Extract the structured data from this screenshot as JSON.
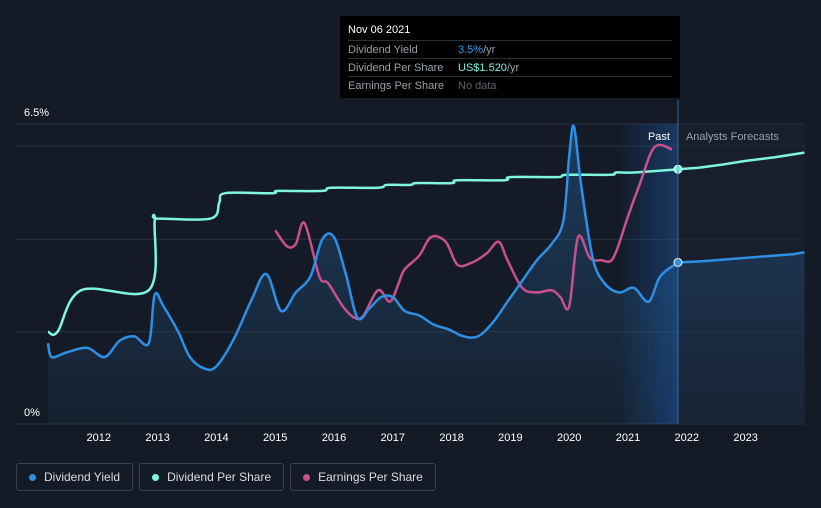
{
  "tooltip": {
    "date": "Nov 06 2021",
    "rows": [
      {
        "label": "Dividend Yield",
        "value": "3.5%",
        "suffix": " /yr"
      },
      {
        "label": "Dividend Per Share",
        "value": "US$1.520",
        "suffix": " /yr"
      },
      {
        "label": "Earnings Per Share",
        "value": "No data",
        "suffix": ""
      }
    ]
  },
  "legend": [
    {
      "label": "Dividend Yield",
      "color": "#2e8fe6"
    },
    {
      "label": "Dividend Per Share",
      "color": "#7ff5dc"
    },
    {
      "label": "Earnings Per Share",
      "color": "#c8508e"
    }
  ],
  "chart_data": {
    "type": "line",
    "ylim": [
      0,
      6.5
    ],
    "y_ticks": [
      "6.5%",
      "0%"
    ],
    "x_ticks": [
      "2012",
      "2013",
      "2014",
      "2015",
      "2016",
      "2017",
      "2018",
      "2019",
      "2020",
      "2021",
      "2022",
      "2023"
    ],
    "xlim": [
      2011.0,
      2024.0
    ],
    "past_label": "Past",
    "forecast_label": "Analysts Forecasts",
    "forecast_start": 2021.85,
    "colors": {
      "yield": "#2e8fe6",
      "dps": "#7ff5dc",
      "eps": "#c8508e",
      "grid": "#2a313d",
      "axis": "#ffffff"
    },
    "series": [
      {
        "name": "Dividend Yield",
        "key": "yield",
        "x": [
          2011.0,
          2011.2,
          2011.45,
          2011.8,
          2012.1,
          2012.35,
          2012.6,
          2012.85,
          2012.95,
          2013.1,
          2013.35,
          2013.55,
          2013.8,
          2014.0,
          2014.3,
          2014.6,
          2014.85,
          2015.1,
          2015.35,
          2015.6,
          2015.8,
          2016.0,
          2016.2,
          2016.4,
          2016.6,
          2016.8,
          2017.0,
          2017.2,
          2017.45,
          2017.7,
          2017.95,
          2018.2,
          2018.45,
          2018.7,
          2018.95,
          2019.2,
          2019.45,
          2019.7,
          2019.9,
          2020.0,
          2020.08,
          2020.2,
          2020.4,
          2020.6,
          2020.85,
          2021.1,
          2021.35,
          2021.55,
          2021.85
        ],
        "values": [
          1.75,
          1.45,
          1.55,
          1.65,
          1.45,
          1.8,
          1.9,
          1.75,
          2.8,
          2.55,
          2.0,
          1.45,
          1.2,
          1.25,
          1.85,
          2.7,
          3.25,
          2.45,
          2.85,
          3.2,
          4.0,
          4.05,
          3.25,
          2.3,
          2.5,
          2.75,
          2.75,
          2.45,
          2.35,
          2.15,
          2.05,
          1.9,
          1.9,
          2.2,
          2.65,
          3.1,
          3.55,
          3.9,
          4.4,
          5.8,
          6.45,
          5.2,
          3.6,
          3.05,
          2.85,
          2.95,
          2.65,
          3.2,
          3.5
        ]
      },
      {
        "name": "Dividend Per Share",
        "key": "dps",
        "x": [
          2011.0,
          2011.3,
          2011.7,
          2012.85,
          2012.95,
          2013.0,
          2013.9,
          2014.05,
          2014.15,
          2014.95,
          2015.05,
          2015.8,
          2015.95,
          2016.75,
          2016.9,
          2017.3,
          2017.4,
          2018.0,
          2018.1,
          2018.9,
          2019.0,
          2019.8,
          2019.95,
          2020.7,
          2020.8,
          2021.1,
          2021.85
        ],
        "values": [
          2.0,
          2.0,
          2.9,
          2.9,
          4.4,
          4.45,
          4.45,
          4.8,
          5.0,
          5.0,
          5.05,
          5.05,
          5.12,
          5.12,
          5.18,
          5.18,
          5.22,
          5.22,
          5.28,
          5.28,
          5.35,
          5.35,
          5.4,
          5.4,
          5.45,
          5.45,
          5.52
        ]
      },
      {
        "name": "Earnings Per Share",
        "key": "eps",
        "x": [
          2015.0,
          2015.2,
          2015.35,
          2015.5,
          2015.75,
          2015.9,
          2016.15,
          2016.35,
          2016.5,
          2016.75,
          2016.95,
          2017.1,
          2017.2,
          2017.45,
          2017.65,
          2017.9,
          2018.1,
          2018.35,
          2018.6,
          2018.8,
          2018.95,
          2019.2,
          2019.45,
          2019.7,
          2019.85,
          2020.0,
          2020.15,
          2020.35,
          2020.55,
          2020.75,
          2021.0,
          2021.2,
          2021.45,
          2021.75
        ],
        "values": [
          4.2,
          3.85,
          3.9,
          4.35,
          3.2,
          3.05,
          2.55,
          2.3,
          2.35,
          2.9,
          2.65,
          3.05,
          3.35,
          3.65,
          4.05,
          3.95,
          3.45,
          3.5,
          3.7,
          3.95,
          3.55,
          2.95,
          2.85,
          2.9,
          2.75,
          2.55,
          4.05,
          3.6,
          3.55,
          3.6,
          4.5,
          5.2,
          6.0,
          5.95
        ]
      }
    ],
    "forecast": [
      {
        "key": "dps",
        "x": [
          2021.85,
          2022.2,
          2022.6,
          2023.0,
          2023.5,
          2024.0
        ],
        "values": [
          5.52,
          5.55,
          5.62,
          5.7,
          5.78,
          5.88
        ]
      },
      {
        "key": "yield",
        "x": [
          2021.85,
          2022.3,
          2022.8,
          2023.3,
          2023.8,
          2024.0
        ],
        "values": [
          3.5,
          3.53,
          3.58,
          3.63,
          3.68,
          3.72
        ]
      }
    ]
  }
}
